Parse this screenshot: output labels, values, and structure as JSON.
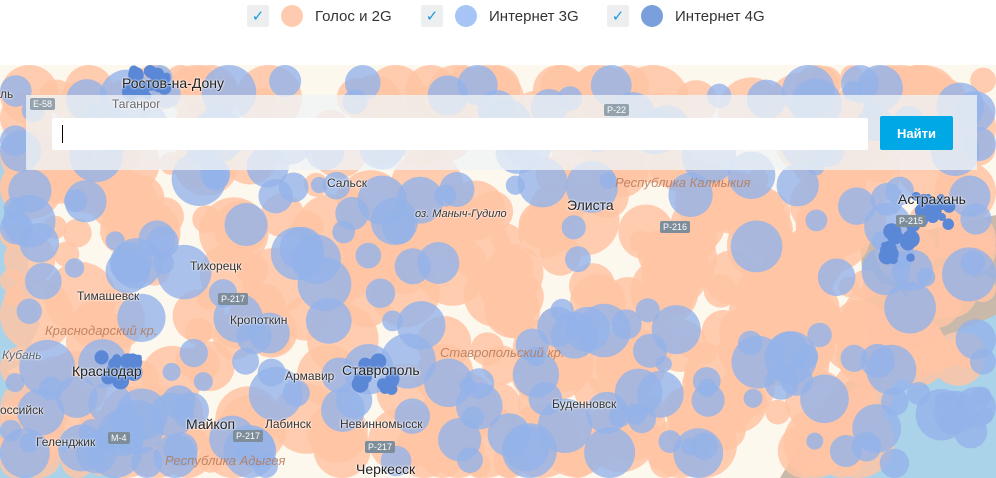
{
  "legend": {
    "items": [
      {
        "label": "Голос и 2G",
        "checked": true,
        "color": "#ffcbb0"
      },
      {
        "label": "Интернет 3G",
        "checked": true,
        "color": "#a6c4f5"
      },
      {
        "label": "Интернет 4G",
        "checked": true,
        "color": "#7a9fda"
      }
    ],
    "check_glyph": "✓"
  },
  "search": {
    "value": "",
    "button_label": "Найти"
  },
  "map": {
    "colors": {
      "sea": "#aad3ea",
      "land": "#fdf8ee",
      "voice": "#ffc4a4",
      "g3": "#93b3ea",
      "g4": "#5b88d6",
      "steppe": "#c8b9aa"
    },
    "cities": [
      {
        "name": "Ростов-на-Дону",
        "big": true
      },
      {
        "name": "Таганрог"
      },
      {
        "name": "Сальск"
      },
      {
        "name": "оз. Маныч-Гудило"
      },
      {
        "name": "Элиста",
        "big": true
      },
      {
        "name": "Астрахань",
        "big": true
      },
      {
        "name": "Тихорецк"
      },
      {
        "name": "Тимашевск"
      },
      {
        "name": "Кропоткин"
      },
      {
        "name": "Кубань"
      },
      {
        "name": "Краснодар",
        "big": true
      },
      {
        "name": "Армавир"
      },
      {
        "name": "Ставрополь",
        "big": true
      },
      {
        "name": "Буденновск"
      },
      {
        "name": "Майкоп",
        "big": true
      },
      {
        "name": "Лабинск"
      },
      {
        "name": "Невинномысск"
      },
      {
        "name": "Геленджик"
      },
      {
        "name": "оссийск"
      },
      {
        "name": "Черкесск",
        "big": true
      },
      {
        "name": "ль"
      }
    ],
    "regions": [
      "Республика Калмыкия",
      "Краснодарский кр.",
      "Ставропольский кр.",
      "Республика Адыгея"
    ],
    "roads": [
      "E-58",
      "P-22",
      "P-216",
      "P-215",
      "P-217",
      "M-4",
      "P-217",
      "P-217"
    ]
  }
}
